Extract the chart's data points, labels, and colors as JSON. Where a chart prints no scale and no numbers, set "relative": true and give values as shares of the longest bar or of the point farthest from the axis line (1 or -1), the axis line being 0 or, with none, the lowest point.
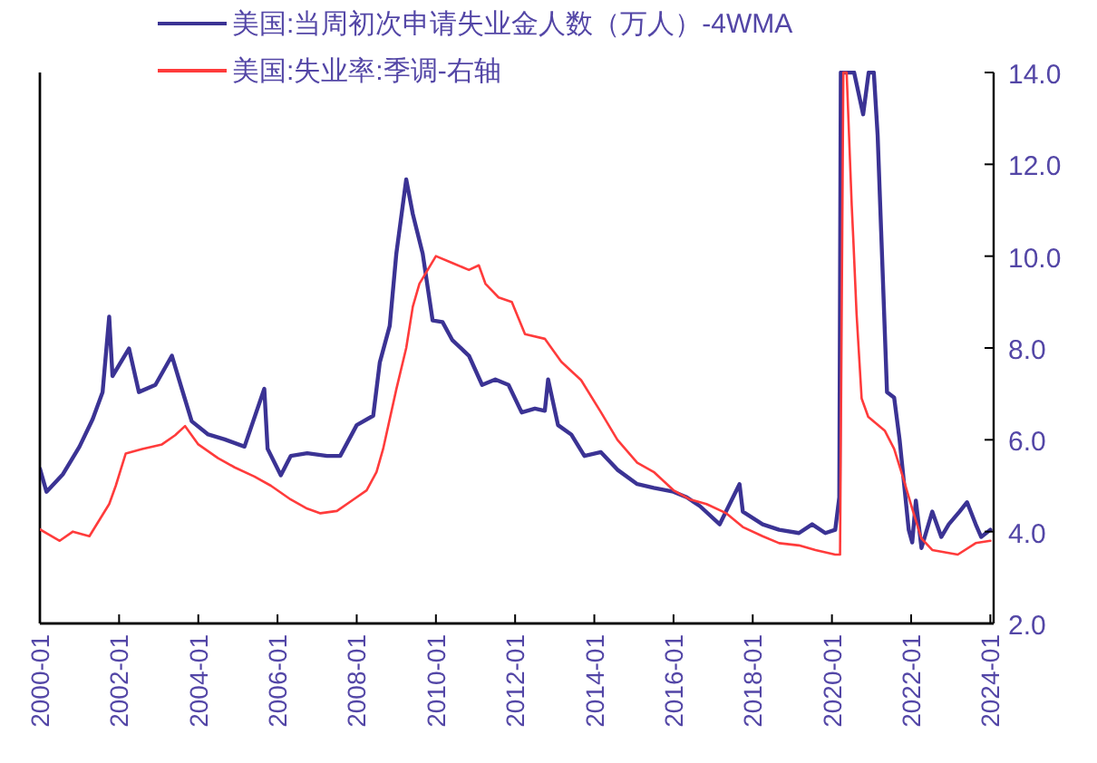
{
  "chart_data": [
    {
      "type": "line",
      "relative": true,
      "legend": "top",
      "marker": "none",
      "line_style": "solid",
      "xlim": [
        "2000-01",
        "2024-02"
      ],
      "series": [
        {
          "name": "美国:当周初次申请失业金人数（万人）-4WMA",
          "color": "#3b3394",
          "x": [
            "2000-01",
            "2000-03",
            "2000-08",
            "2001-01",
            "2001-05",
            "2001-08",
            "2001-10",
            "2001-11",
            "2002-04",
            "2002-07",
            "2002-12",
            "2003-05",
            "2003-08",
            "2003-11",
            "2004-04",
            "2004-09",
            "2005-03",
            "2005-09",
            "2005-10",
            "2006-02",
            "2006-05",
            "2006-10",
            "2007-04",
            "2007-08",
            "2008-01",
            "2008-06",
            "2008-08",
            "2008-11",
            "2009-01",
            "2009-04",
            "2009-06",
            "2009-09",
            "2009-12",
            "2010-03",
            "2010-06",
            "2010-11",
            "2011-03",
            "2011-07",
            "2011-11",
            "2012-03",
            "2012-07",
            "2012-10",
            "2012-11",
            "2013-02",
            "2013-06",
            "2013-10",
            "2014-03",
            "2014-08",
            "2015-02",
            "2015-07",
            "2016-01",
            "2016-05",
            "2016-09",
            "2017-03",
            "2017-09",
            "2017-10",
            "2018-04",
            "2018-09",
            "2019-03",
            "2019-07",
            "2019-11",
            "2020-02",
            "2020-03-08",
            "2020-03-22",
            "2020-07-23",
            "2020-10-15",
            "2020-12-05",
            "2021-01-22",
            "2021-02-27",
            "2021-05-22",
            "2021-07-27",
            "2021-09-16",
            "2021-12-09",
            "2022-01-11",
            "2022-02-14",
            "2022-04-05",
            "2022-07-13",
            "2022-10-05",
            "2022-12-13",
            "2023-03-21",
            "2023-05-30",
            "2023-08-18",
            "2023-10-08",
            "2024-01-01"
          ],
          "values": [
            0.281,
            0.239,
            0.271,
            0.321,
            0.371,
            0.42,
            0.557,
            0.449,
            0.499,
            0.42,
            0.433,
            0.486,
            0.426,
            0.367,
            0.343,
            0.334,
            0.321,
            0.426,
            0.317,
            0.269,
            0.304,
            0.309,
            0.304,
            0.304,
            0.36,
            0.377,
            0.474,
            0.54,
            0.671,
            0.806,
            0.743,
            0.671,
            0.55,
            0.547,
            0.514,
            0.486,
            0.433,
            0.443,
            0.433,
            0.383,
            0.39,
            0.386,
            0.443,
            0.36,
            0.343,
            0.304,
            0.311,
            0.279,
            0.253,
            0.246,
            0.239,
            0.229,
            0.213,
            0.18,
            0.253,
            0.203,
            0.18,
            0.17,
            0.164,
            0.18,
            0.164,
            0.17,
            0.229,
            1,
            1,
            0.924,
            1,
            1,
            0.886,
            0.42,
            0.41,
            0.334,
            0.17,
            0.147,
            0.223,
            0.137,
            0.203,
            0.157,
            0.18,
            0.203,
            0.22,
            0.18,
            0.157,
            0.17
          ]
        }
      ]
    },
    {
      "type": "line",
      "legend": "top",
      "marker": "none",
      "line_style": "solid",
      "xlim": [
        "2000-01",
        "2024-02"
      ],
      "xticks": [
        "2000-01",
        "2002-01",
        "2004-01",
        "2006-01",
        "2008-01",
        "2010-01",
        "2012-01",
        "2014-01",
        "2016-01",
        "2018-01",
        "2020-01",
        "2022-01",
        "2024-01"
      ],
      "y2lim": [
        2,
        14
      ],
      "y2ticks": [
        {
          "value": 2,
          "label": "2.0"
        },
        {
          "value": 4,
          "label": "4.0"
        },
        {
          "value": 6,
          "label": "6.0"
        },
        {
          "value": 8,
          "label": "8.0"
        },
        {
          "value": 10,
          "label": "10.0"
        },
        {
          "value": 12,
          "label": "12.0"
        },
        {
          "value": 14,
          "label": "14.0"
        }
      ],
      "series": [
        {
          "name": "美国:失业率:季调-右轴",
          "color": "#ff3b3b",
          "axis": "y2",
          "x": [
            "2000-01",
            "2000-07",
            "2000-11",
            "2001-04",
            "2001-07",
            "2001-10",
            "2001-12",
            "2002-03",
            "2002-08",
            "2003-02",
            "2003-06",
            "2003-09",
            "2004-01",
            "2004-07",
            "2004-12",
            "2005-06",
            "2005-11",
            "2006-05",
            "2006-10",
            "2007-02",
            "2007-07",
            "2007-12",
            "2008-04",
            "2008-07",
            "2008-09",
            "2009-01",
            "2009-04",
            "2009-06",
            "2009-08",
            "2010-01",
            "2010-06",
            "2010-11",
            "2011-02",
            "2011-04",
            "2011-08",
            "2011-12",
            "2012-04",
            "2012-10",
            "2012-12",
            "2013-03",
            "2013-09",
            "2014-03",
            "2014-08",
            "2015-02",
            "2015-07",
            "2016-01",
            "2016-06",
            "2016-11",
            "2017-05",
            "2017-10",
            "2018-04",
            "2018-09",
            "2019-03",
            "2019-08",
            "2020-02",
            "2020-03-15",
            "2020-04-15",
            "2020-05-15",
            "2020-07-01",
            "2020-07-15",
            "2020-08-15",
            "2020-10-01",
            "2020-12-01",
            "2021-05-01",
            "2021-07-27",
            "2021-10-15",
            "2022-01-11",
            "2022-04-05",
            "2022-07-13",
            "2023-03-05",
            "2023-08-18",
            "2024-01-01"
          ],
          "values": [
            4.05,
            3.8,
            4.0,
            3.9,
            4.25,
            4.6,
            5.0,
            5.7,
            5.8,
            5.9,
            6.1,
            6.3,
            5.9,
            5.6,
            5.4,
            5.2,
            5.0,
            4.7,
            4.5,
            4.4,
            4.45,
            4.7,
            4.9,
            5.3,
            5.8,
            7.1,
            8.0,
            8.9,
            9.4,
            10.0,
            9.85,
            9.7,
            9.8,
            9.4,
            9.1,
            9.0,
            8.3,
            8.2,
            8.0,
            7.7,
            7.3,
            6.6,
            6.0,
            5.5,
            5.3,
            4.9,
            4.7,
            4.6,
            4.4,
            4.1,
            3.9,
            3.75,
            3.7,
            3.6,
            3.5,
            3.5,
            14,
            14,
            11.1,
            10.4,
            8.75,
            6.9,
            6.5,
            6.2,
            5.8,
            5.2,
            4.5,
            3.85,
            3.6,
            3.5,
            3.75,
            3.8
          ]
        }
      ]
    }
  ]
}
